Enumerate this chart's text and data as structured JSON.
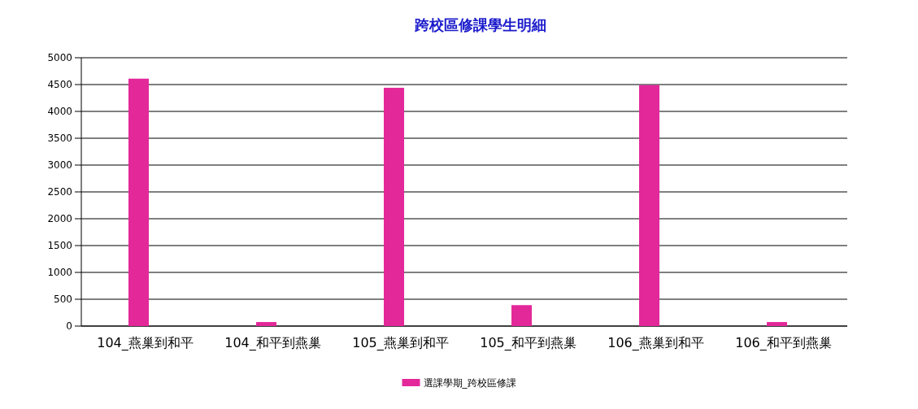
{
  "chart_data": {
    "type": "bar",
    "title": "跨校區修課學生明細",
    "categories": [
      "104_燕巢到和平",
      "104_和平到燕巢",
      "105_燕巢到和平",
      "105_和平到燕巢",
      "106_燕巢到和平",
      "106_和平到燕巢"
    ],
    "series": [
      {
        "name": "選課學期_跨校區修課",
        "color": "#e3289a",
        "values": [
          4610,
          75,
          4440,
          390,
          4490,
          75
        ]
      }
    ],
    "ylim": [
      0,
      5000
    ],
    "yticks": [
      0,
      500,
      1000,
      1500,
      2000,
      2500,
      3000,
      3500,
      4000,
      4500,
      5000
    ],
    "grid": "y",
    "legend": "bottom"
  }
}
